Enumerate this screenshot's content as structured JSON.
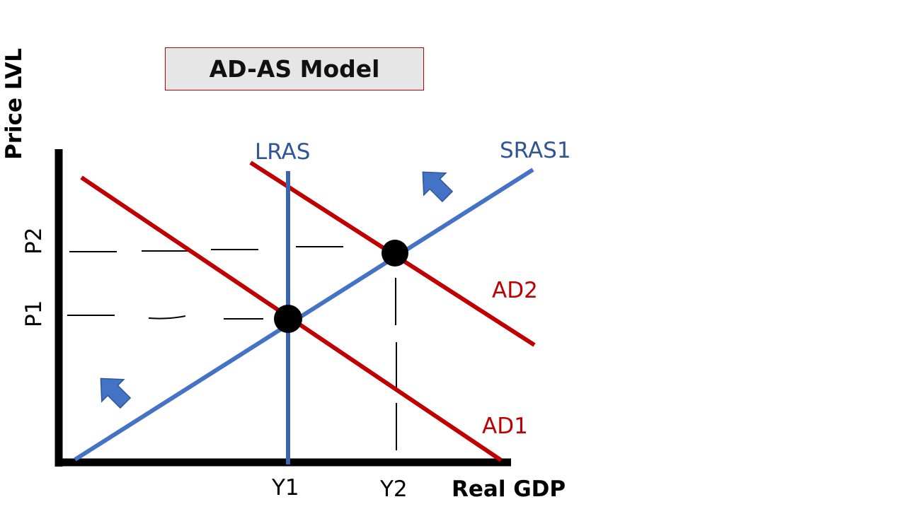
{
  "title": "AD-AS Model",
  "axes": {
    "y_label": "Price LVL",
    "x_label": "Real GDP"
  },
  "curves": {
    "lras": {
      "label": "LRAS",
      "color": "#4472c4"
    },
    "sras": {
      "label": "SRAS1",
      "color": "#4472c4"
    },
    "ad1": {
      "label": "AD1",
      "color": "#c00000"
    },
    "ad2": {
      "label": "AD2",
      "color": "#c00000"
    }
  },
  "levels": {
    "p1": "P1",
    "p2": "P2",
    "y1": "Y1",
    "y2": "Y2"
  },
  "colors": {
    "axis": "#000000",
    "blue_text": "#2f5597",
    "red": "#c00000",
    "arrow": "#4472c4"
  }
}
